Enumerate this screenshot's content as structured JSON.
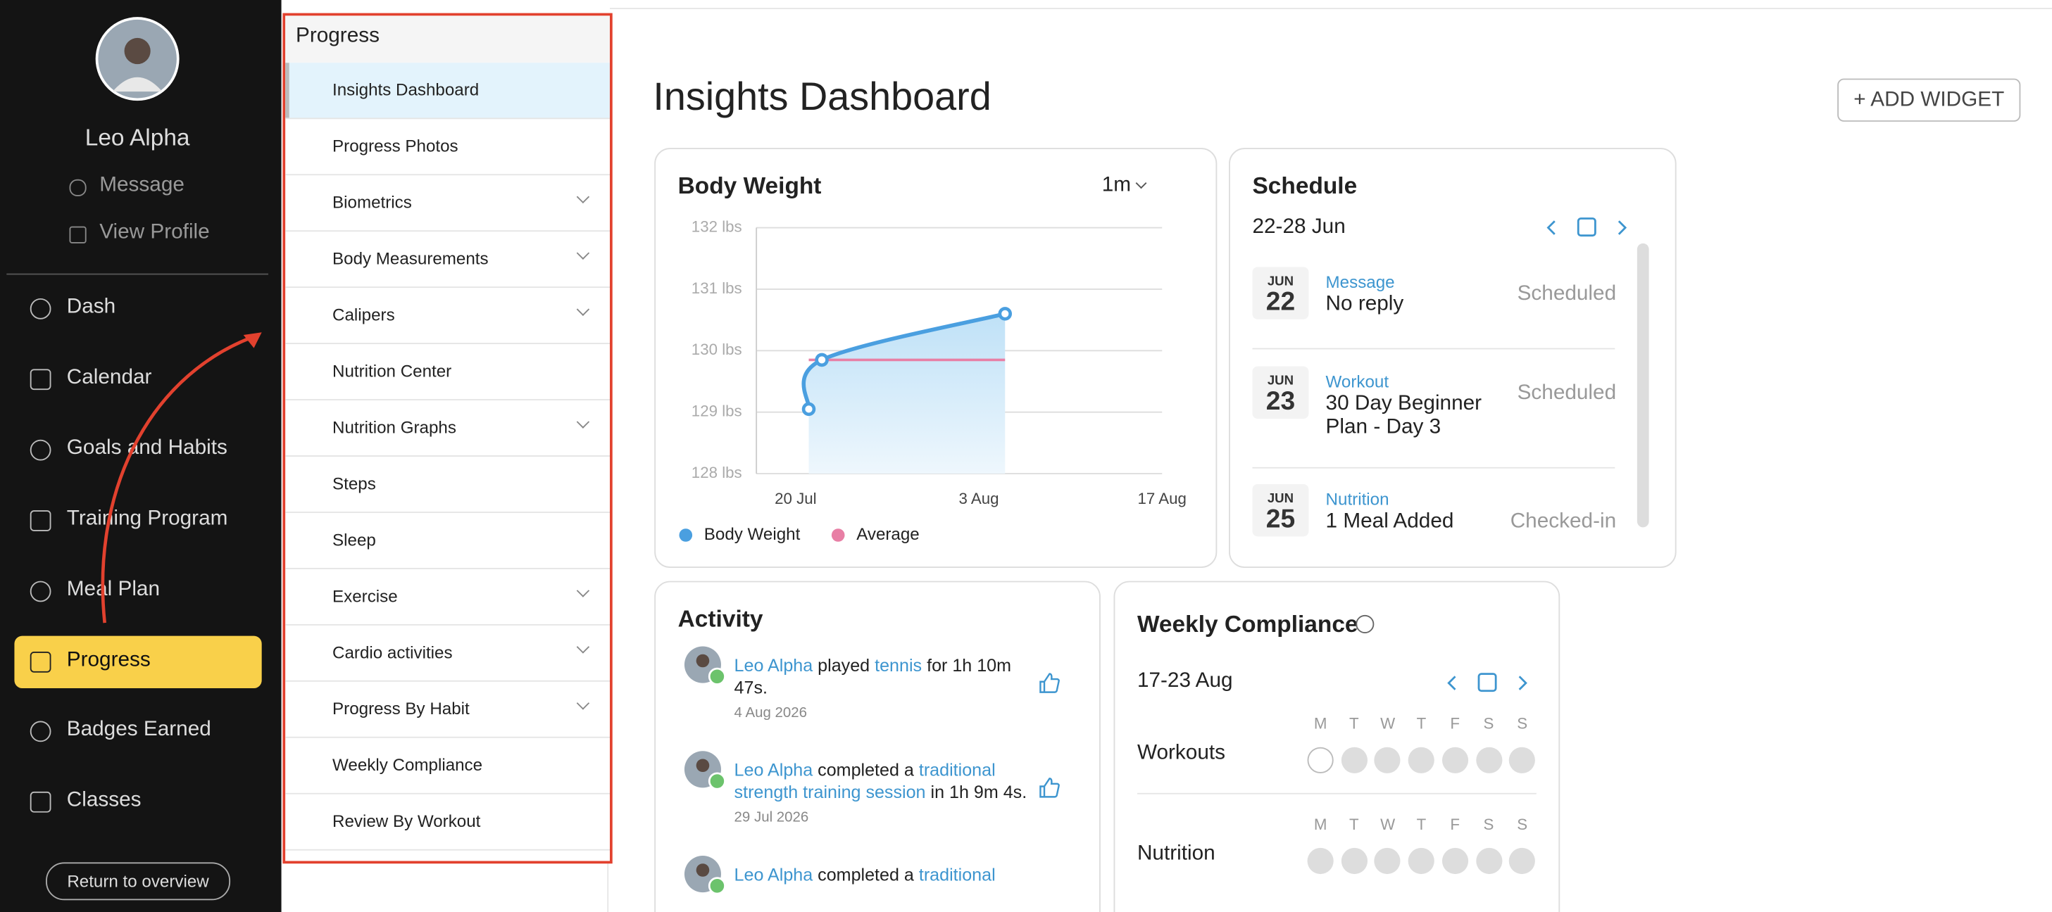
{
  "sidebar": {
    "name": "Leo Alpha",
    "links": [
      "Message",
      "View Profile"
    ],
    "nav": [
      "Dash",
      "Calendar",
      "Goals and Habits",
      "Training Program",
      "Meal Plan",
      "Progress",
      "Badges Earned",
      "Classes"
    ],
    "active": 5,
    "footer_button": "Return to overview"
  },
  "submenu": {
    "title": "Progress",
    "items": [
      {
        "label": "Insights Dashboard",
        "selected": true
      },
      {
        "label": "Progress Photos"
      },
      {
        "label": "Biometrics",
        "expandable": true
      },
      {
        "label": "Body Measurements",
        "expandable": true
      },
      {
        "label": "Calipers",
        "expandable": true
      },
      {
        "label": "Nutrition Center"
      },
      {
        "label": "Nutrition Graphs",
        "expandable": true
      },
      {
        "label": "Steps"
      },
      {
        "label": "Sleep"
      },
      {
        "label": "Exercise",
        "expandable": true
      },
      {
        "label": "Cardio activities",
        "expandable": true
      },
      {
        "label": "Progress By Habit",
        "expandable": true
      },
      {
        "label": "Weekly Compliance"
      },
      {
        "label": "Review By Workout"
      }
    ]
  },
  "main": {
    "title": "Insights Dashboard",
    "button": "+ ADD WIDGET"
  },
  "chart_data": {
    "type": "line",
    "title": "Body Weight",
    "range": "1m",
    "x": [
      "21 Jul",
      "22 Jul",
      "5 Aug"
    ],
    "series": [
      {
        "name": "Body Weight",
        "color": "#4a9fe0",
        "values": [
          129.05,
          129.85,
          130.6
        ]
      },
      {
        "name": "Average",
        "color": "#e87fa5",
        "values": [
          129.85,
          129.85,
          129.85
        ]
      }
    ],
    "xlim": [
      "17 Jul",
      "17 Aug"
    ],
    "xticks": [
      "20 Jul",
      "3 Aug",
      "17 Aug"
    ],
    "ylim": [
      128,
      132
    ],
    "yticks": [
      {
        "value": 128,
        "label": "128 lbs"
      },
      {
        "value": 129,
        "label": "129 lbs"
      },
      {
        "value": 130,
        "label": "130 lbs"
      },
      {
        "value": 131,
        "label": "131 lbs"
      },
      {
        "value": 132,
        "label": "132 lbs"
      }
    ],
    "grid": true
  },
  "schedule": {
    "title": "Schedule",
    "range": "22-28 Jun",
    "items": [
      {
        "month": "JUN",
        "day": "22",
        "type": "Message",
        "text": "No reply",
        "status": "Scheduled"
      },
      {
        "month": "JUN",
        "day": "23",
        "type": "Workout",
        "text": "30 Day Beginner Plan - Day 3",
        "status": "Scheduled"
      },
      {
        "month": "JUN",
        "day": "25",
        "type": "Nutrition",
        "text": "1 Meal Added",
        "status": "Checked-in"
      }
    ]
  },
  "activity": {
    "title": "Activity",
    "items": [
      {
        "actor": "Leo Alpha",
        "verb": "played",
        "object": "tennis",
        "rest": "for 1h 10m 47s.",
        "date": "4 Aug 2026"
      },
      {
        "actor": "Leo Alpha",
        "verb": "completed a",
        "object": "traditional strength training session",
        "rest": "in 1h 9m 4s.",
        "date": "29 Jul 2026"
      },
      {
        "actor": "Leo Alpha",
        "verb": "completed a",
        "object": "traditional"
      }
    ]
  },
  "compliance": {
    "title": "Weekly Compliance",
    "range": "17-23 Aug",
    "days": [
      "M",
      "T",
      "W",
      "T",
      "F",
      "S",
      "S"
    ],
    "rows": [
      "Workouts",
      "Nutrition"
    ]
  }
}
